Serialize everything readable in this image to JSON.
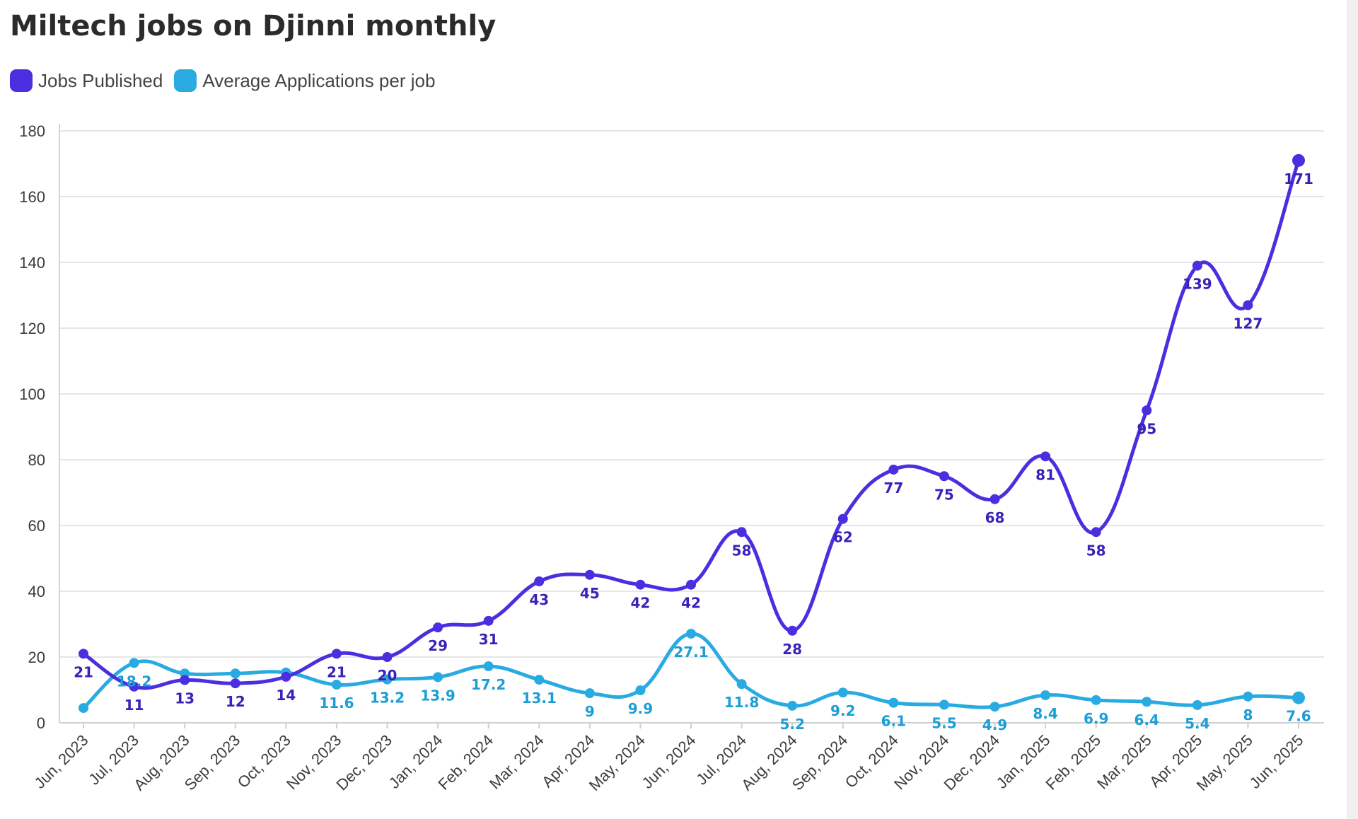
{
  "chart_data": {
    "type": "line",
    "title": "Miltech jobs on Djinni monthly",
    "xlabel": "",
    "ylabel": "",
    "ylim": [
      0,
      180
    ],
    "yticks": [
      "0",
      "20",
      "40",
      "60",
      "80",
      "100",
      "120",
      "140",
      "160",
      "180"
    ],
    "grid": true,
    "legend_position": "top-left",
    "categories": [
      "Jun, 2023",
      "Jul, 2023",
      "Aug, 2023",
      "Sep, 2023",
      "Oct, 2023",
      "Nov, 2023",
      "Dec, 2023",
      "Jan, 2024",
      "Feb, 2024",
      "Mar, 2024",
      "Apr, 2024",
      "May, 2024",
      "Jun, 2024",
      "Jul, 2024",
      "Aug, 2024",
      "Sep, 2024",
      "Oct, 2024",
      "Nov, 2024",
      "Dec, 2024",
      "Jan, 2025",
      "Feb, 2025",
      "Mar, 2025",
      "Apr, 2025",
      "May, 2025",
      "Jun, 2025"
    ],
    "series": [
      {
        "name": "Jobs Published",
        "color": "#4b2ee0",
        "label_color": "#3a22b8",
        "values": [
          21,
          11,
          13,
          12,
          14,
          21,
          20,
          29,
          31,
          43,
          45,
          42,
          42,
          58,
          28,
          62,
          77,
          75,
          68,
          81,
          58,
          95,
          139,
          127,
          171
        ],
        "labels": [
          "21",
          "11",
          "13",
          "12",
          "14",
          "21",
          "20",
          "29",
          "31",
          "43",
          "45",
          "42",
          "42",
          "58",
          "28",
          "62",
          "77",
          "75",
          "68",
          "81",
          "58",
          "95",
          "139",
          "127",
          "171"
        ]
      },
      {
        "name": "Average Applications per job",
        "color": "#29abe2",
        "label_color": "#1b9dd6",
        "values": [
          4.5,
          18.2,
          15,
          15,
          15.3,
          11.6,
          13.2,
          13.9,
          17.2,
          13.1,
          9,
          9.9,
          27.1,
          11.8,
          5.2,
          9.2,
          6.1,
          5.5,
          4.9,
          8.4,
          6.9,
          6.4,
          5.4,
          8,
          7.6
        ],
        "labels": [
          "",
          "18.2",
          "",
          "",
          "",
          "11.6",
          "13.2",
          "13.9",
          "17.2",
          "13.1",
          "9",
          "9.9",
          "27.1",
          "11.8",
          "5.2",
          "9.2",
          "6.1",
          "5.5",
          "4.9",
          "8.4",
          "6.9",
          "6.4",
          "5.4",
          "8",
          "7.6"
        ]
      }
    ]
  }
}
